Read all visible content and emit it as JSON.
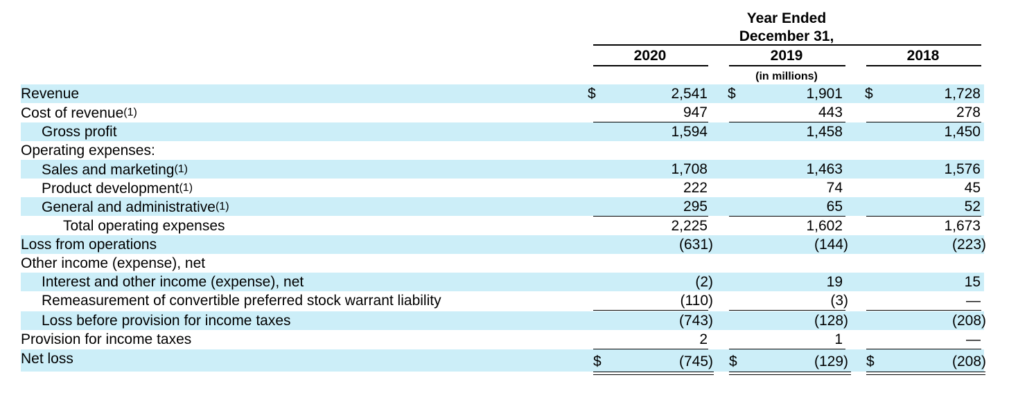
{
  "header": {
    "title_line1": "Year Ended",
    "title_line2": "December 31,",
    "years": [
      "2020",
      "2019",
      "2018"
    ],
    "units": "(in millions)"
  },
  "currency_symbol": "$",
  "rows": [
    {
      "label": "Revenue",
      "fn": "",
      "values": [
        "2,541",
        "1,901",
        "1,728"
      ]
    },
    {
      "label": "Cost of revenue",
      "fn": "(1)",
      "values": [
        "947",
        "443",
        "278"
      ]
    },
    {
      "label": "Gross profit",
      "fn": "",
      "values": [
        "1,594",
        "1,458",
        "1,450"
      ]
    },
    {
      "label": "Operating expenses:",
      "fn": "",
      "values": [
        "",
        "",
        ""
      ]
    },
    {
      "label": "Sales and marketing",
      "fn": "(1)",
      "values": [
        "1,708",
        "1,463",
        "1,576"
      ]
    },
    {
      "label": "Product development",
      "fn": "(1)",
      "values": [
        "222",
        "74",
        "45"
      ]
    },
    {
      "label": "General and administrative",
      "fn": "(1)",
      "values": [
        "295",
        "65",
        "52"
      ]
    },
    {
      "label": "Total operating expenses",
      "fn": "",
      "values": [
        "2,225",
        "1,602",
        "1,673"
      ]
    },
    {
      "label": "Loss from operations",
      "fn": "",
      "values": [
        "(631)",
        "(144)",
        "(223)"
      ]
    },
    {
      "label": "Other income (expense), net",
      "fn": "",
      "values": [
        "",
        "",
        ""
      ]
    },
    {
      "label": "Interest and other income (expense), net",
      "fn": "",
      "values": [
        "(2)",
        "19",
        "15"
      ]
    },
    {
      "label": "Remeasurement of convertible preferred stock warrant liability",
      "fn": "",
      "values": [
        "(110)",
        "(3)",
        "—"
      ]
    },
    {
      "label": "Loss before provision for income taxes",
      "fn": "",
      "values": [
        "(743)",
        "(128)",
        "(208)"
      ]
    },
    {
      "label": "Provision for income taxes",
      "fn": "",
      "values": [
        "2",
        "1",
        "—"
      ]
    },
    {
      "label": "Net loss",
      "fn": "",
      "values": [
        "(745)",
        "(129)",
        "(208)"
      ]
    }
  ]
}
